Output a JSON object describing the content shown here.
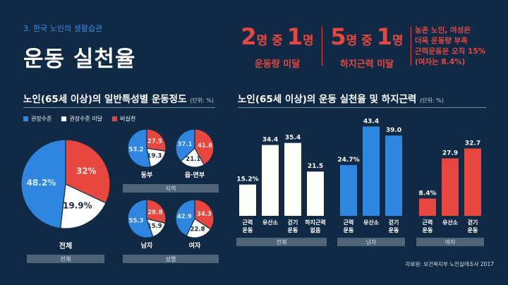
{
  "header": {
    "section_label": "3. 한국 노인의 생활습관",
    "title": "운동 실천율",
    "stats": [
      {
        "a": "2",
        "a_unit": "명",
        "mid": " 중 ",
        "b": "1",
        "b_unit": "명",
        "label": "운동량 미달"
      },
      {
        "a": "5",
        "a_unit": "명",
        "mid": " 중 ",
        "b": "1",
        "b_unit": "명",
        "label": "하지근력 미달"
      }
    ],
    "note_lines": [
      "농촌 노인, 여성은",
      "더욱 운동량 부족",
      "근력운동은 오직 15%",
      "(여자는 8.4%)"
    ]
  },
  "left_panel": {
    "title": "노인(65세 이상)의 일반특성별 운동정도",
    "unit": "(단위: %)",
    "legend": [
      "권장수준",
      "권장수준 미달",
      "비실천"
    ]
  },
  "right_panel": {
    "title": "노인(65세 이상)의 운동 실천율 및 하지근력",
    "unit": "(단위: %)"
  },
  "colors": {
    "blue": "#2f86e0",
    "white": "#ffffff",
    "red": "#e8473f",
    "bg": "#102a45"
  },
  "chart_data": [
    {
      "type": "pie",
      "series_names": [
        "권장수준",
        "권장수준 미달",
        "비실천"
      ],
      "pies": [
        {
          "label": "전체",
          "group": "전체",
          "values": [
            48.2,
            19.9,
            32.0
          ],
          "value_labels": [
            "48.2%",
            "19.9%",
            "32%"
          ]
        },
        {
          "label": "동부",
          "group": "지역",
          "values": [
            53.2,
            19.3,
            27.5
          ],
          "value_labels": [
            "53.2",
            "19.3",
            "27.5"
          ]
        },
        {
          "label": "읍·면부",
          "group": "지역",
          "values": [
            37.1,
            21.1,
            41.8
          ],
          "value_labels": [
            "37.1",
            "21.1",
            "41.8"
          ]
        },
        {
          "label": "남자",
          "group": "성별",
          "values": [
            55.3,
            15.9,
            28.8
          ],
          "value_labels": [
            "55.3",
            "15.9",
            "28.8"
          ]
        },
        {
          "label": "여자",
          "group": "성별",
          "values": [
            42.9,
            22.8,
            34.3
          ],
          "value_labels": [
            "42.9",
            "22.8",
            "34.3"
          ]
        }
      ],
      "group_labels": [
        "전체",
        "지역",
        "성별"
      ]
    },
    {
      "type": "bar",
      "ylim": [
        0,
        50
      ],
      "groups": [
        {
          "name": "전체",
          "color": "#ffffff",
          "categories": [
            [
              "근력",
              "운동"
            ],
            [
              "유산소"
            ],
            [
              "걷기",
              "운동"
            ],
            [
              "하지근력",
              "없음"
            ]
          ],
          "values": [
            15.2,
            34.4,
            35.4,
            21.5
          ],
          "value_labels": [
            "15.2%",
            "34.4",
            "35.4",
            "21.5"
          ]
        },
        {
          "name": "남자",
          "color": "#2f86e0",
          "categories": [
            [
              "근력",
              "운동"
            ],
            [
              "유산소"
            ],
            [
              "걷기",
              "운동"
            ]
          ],
          "values": [
            24.7,
            43.4,
            39.0
          ],
          "value_labels": [
            "24.7%",
            "43.4",
            "39.0"
          ]
        },
        {
          "name": "여자",
          "color": "#e8473f",
          "categories": [
            [
              "근력",
              "운동"
            ],
            [
              "유산소"
            ],
            [
              "걷기",
              "운동"
            ]
          ],
          "values": [
            8.4,
            27.9,
            32.7
          ],
          "value_labels": [
            "8.4%",
            "27.9",
            "32.7"
          ]
        }
      ]
    }
  ],
  "source": "자료원: 보건복지부 노인실태조사 2017"
}
